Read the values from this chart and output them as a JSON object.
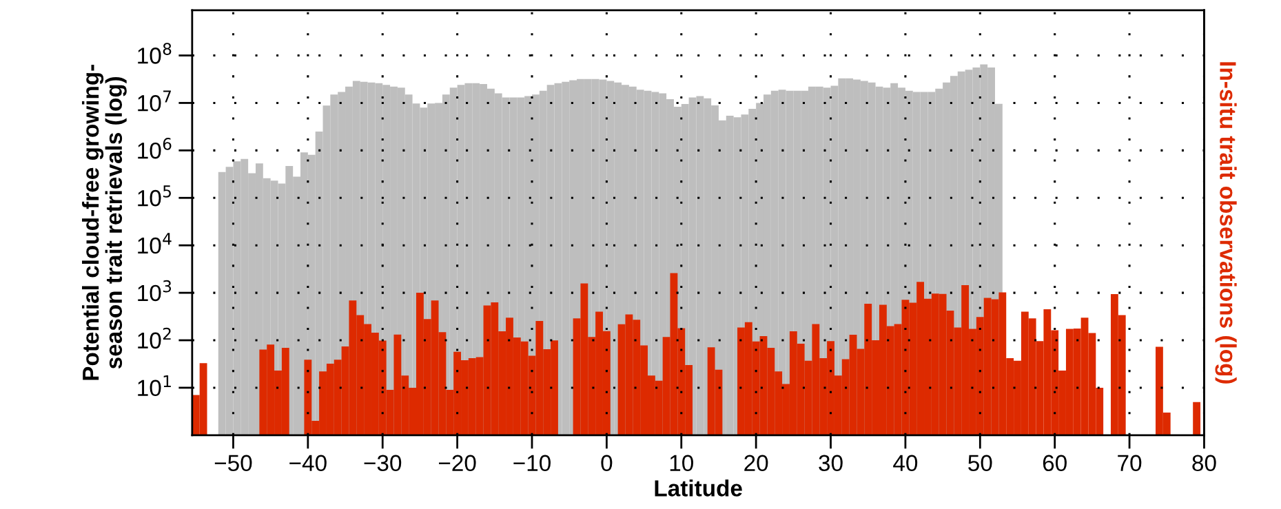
{
  "chart_data": {
    "type": "bar",
    "xlabel": "Latitude",
    "ylabel": "Potential cloud-free growing-\nseason trait retrievals (log)",
    "y2label": "In-situ trait observations (log)",
    "log": "y",
    "grid": true,
    "xlim": [
      -55.5,
      80
    ],
    "xticks": [
      {
        "value": -50,
        "label": "−50"
      },
      {
        "value": -40,
        "label": "−40"
      },
      {
        "value": -30,
        "label": "−30"
      },
      {
        "value": -20,
        "label": "−20"
      },
      {
        "value": -10,
        "label": "−10"
      },
      0,
      10,
      20,
      30,
      40,
      50,
      60,
      70,
      80
    ],
    "ylim": [
      1,
      900000000
    ],
    "yticks": [
      {
        "value": 10,
        "label": "10$^{1}$"
      },
      {
        "value": 100,
        "label": "10$^{2}$"
      },
      {
        "value": 1000,
        "label": "10$^{3}$"
      },
      {
        "value": 10000,
        "label": "10$^{4}$"
      },
      {
        "value": 100000,
        "label": "10$^{5}$"
      },
      {
        "value": 1000000,
        "label": "10$^{6}$"
      },
      {
        "value": 10000000,
        "label": "10$^{7}$"
      },
      {
        "value": 100000000,
        "label": "10$^{8}$"
      }
    ],
    "series": [
      {
        "color": "#bebebe",
        "x": [
          -51.5,
          -50.5,
          -49.5,
          -48.5,
          -47.5,
          -46.5,
          -45.5,
          -44.5,
          -43.5,
          -42.5,
          -41.5,
          -40.5,
          -39.5,
          -38.5,
          -37.5,
          -36.5,
          -35.5,
          -34.5,
          -33.5,
          -32.5,
          -31.5,
          -30.5,
          -29.5,
          -28.5,
          -27.5,
          -26.5,
          -25.5,
          -24.5,
          -23.5,
          -22.5,
          -21.5,
          -20.5,
          -19.5,
          -18.5,
          -17.5,
          -16.5,
          -15.5,
          -14.5,
          -13.5,
          -12.5,
          -11.5,
          -10.5,
          -9.5,
          -8.5,
          -7.5,
          -6.5,
          -5.5,
          -4.5,
          -3.5,
          -2.5,
          -1.5,
          -0.5,
          0.5,
          1.5,
          2.5,
          3.5,
          4.5,
          5.5,
          6.5,
          7.5,
          8.5,
          9.5,
          10.5,
          11.5,
          12.5,
          13.5,
          14.5,
          15.5,
          16.5,
          17.5,
          18.5,
          19.5,
          20.5,
          21.5,
          22.5,
          23.5,
          24.5,
          25.5,
          26.5,
          27.5,
          28.5,
          29.5,
          30.5,
          31.5,
          32.5,
          33.5,
          34.5,
          35.5,
          36.5,
          37.5,
          38.5,
          39.5,
          40.5,
          41.5,
          42.5,
          43.5,
          44.5,
          45.5,
          46.5,
          47.5,
          48.5,
          49.5,
          50.5,
          51.5,
          52.5
        ],
        "values": [
          350000,
          450000,
          590000,
          660000,
          330000,
          530000,
          260000,
          230000,
          200000,
          470000,
          280000,
          910000,
          810000,
          2500000,
          8800000,
          15000000,
          17000000,
          22000000,
          29000000,
          28000000,
          27000000,
          26000000,
          24000000,
          22000000,
          21000000,
          15000000,
          9700000,
          8000000,
          9700000,
          10000000,
          15000000,
          21000000,
          24000000,
          26000000,
          26000000,
          25000000,
          20000000,
          16000000,
          13000000,
          13000000,
          13000000,
          14000000,
          15000000,
          18000000,
          24000000,
          26000000,
          28000000,
          30000000,
          32000000,
          32000000,
          32000000,
          31000000,
          29000000,
          27000000,
          24000000,
          22000000,
          19000000,
          18000000,
          17000000,
          16000000,
          12000000,
          8300000,
          9500000,
          13000000,
          14000000,
          12500000,
          8900000,
          4300000,
          5400000,
          5000000,
          5700000,
          7500000,
          10000000,
          15000000,
          18000000,
          19000000,
          18000000,
          18000000,
          18000000,
          22000000,
          22000000,
          21000000,
          23000000,
          33000000,
          33000000,
          31000000,
          29000000,
          27000000,
          22000000,
          21000000,
          26000000,
          21000000,
          18000000,
          17000000,
          17000000,
          17000000,
          20000000,
          27000000,
          37000000,
          46000000,
          50000000,
          56000000,
          65000000,
          56000000,
          9600000
        ]
      },
      {
        "color": "#dd2a00",
        "x": [
          -55,
          -54,
          -53,
          -52,
          -51,
          -50,
          -49,
          -48,
          -47,
          -46,
          -45,
          -44,
          -43,
          -42,
          -41,
          -40,
          -39,
          -38,
          -37,
          -36,
          -35,
          -34,
          -33,
          -32,
          -31,
          -30,
          -29,
          -28,
          -27,
          -26,
          -25,
          -24,
          -23,
          -22,
          -21,
          -20,
          -19,
          -18,
          -17,
          -16,
          -15,
          -14,
          -13,
          -12,
          -11,
          -10,
          -9,
          -8,
          -7,
          -6,
          -5,
          -4,
          -3,
          -2,
          -1,
          0,
          1,
          2,
          3,
          4,
          5,
          6,
          7,
          8,
          9,
          10,
          11,
          12,
          13,
          14,
          15,
          16,
          17,
          18,
          19,
          20,
          21,
          22,
          23,
          24,
          25,
          26,
          27,
          28,
          29,
          30,
          31,
          32,
          33,
          34,
          35,
          36,
          37,
          38,
          39,
          40,
          41,
          42,
          43,
          44,
          45,
          46,
          47,
          48,
          49,
          50,
          51,
          52,
          53,
          54,
          55,
          56,
          57,
          58,
          59,
          60,
          61,
          62,
          63,
          64,
          65,
          66,
          67,
          68,
          69,
          70,
          71,
          72,
          73,
          74,
          75,
          76,
          77,
          78,
          79
        ],
        "values": [
          7,
          33,
          null,
          null,
          null,
          null,
          null,
          null,
          null,
          64,
          81,
          23,
          69,
          null,
          null,
          39,
          2,
          22,
          32,
          39,
          74,
          690,
          340,
          220,
          145,
          98,
          9,
          132,
          18,
          10,
          1000,
          280,
          690,
          148,
          9,
          57,
          38,
          42,
          44,
          540,
          630,
          155,
          300,
          114,
          94,
          47,
          255,
          65,
          99,
          null,
          null,
          290,
          1580,
          117,
          400,
          156,
          null,
          217,
          350,
          270,
          78,
          18,
          14,
          117,
          2600,
          180,
          30,
          null,
          null,
          71,
          24,
          null,
          null,
          185,
          240,
          94,
          122,
          69,
          22,
          12,
          155,
          85,
          37,
          220,
          42,
          96,
          18,
          40,
          131,
          66,
          590,
          100,
          560,
          198,
          220,
          710,
          620,
          1700,
          750,
          960,
          950,
          420,
          185,
          1450,
          173,
          310,
          780,
          730,
          1020,
          42,
          37,
          400,
          290,
          96,
          450,
          163,
          23,
          173,
          177,
          300,
          142,
          10,
          null,
          940,
          340,
          null,
          null,
          null,
          null,
          73,
          3,
          null,
          null,
          null,
          5
        ]
      }
    ]
  }
}
